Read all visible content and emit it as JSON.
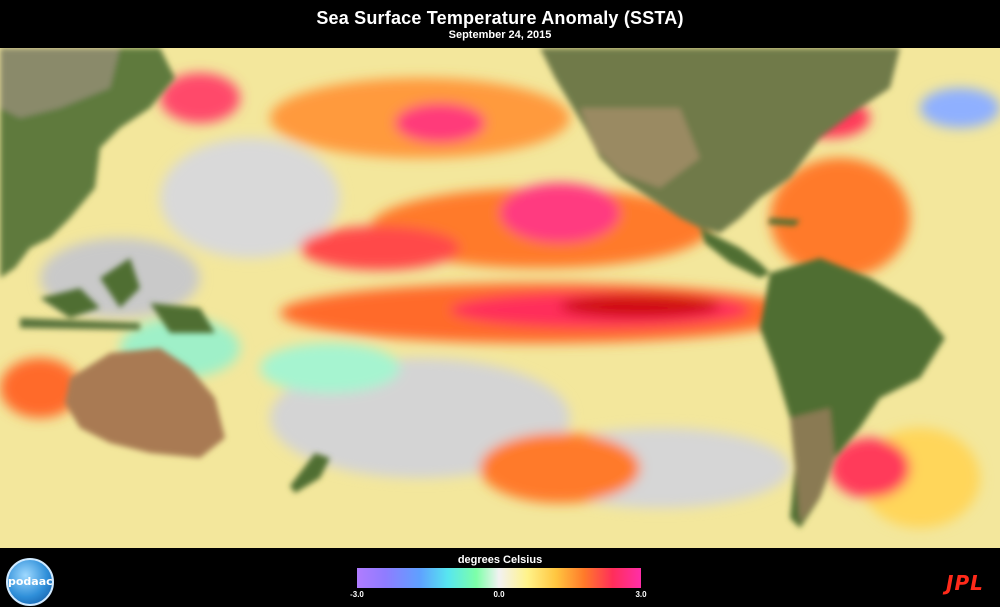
{
  "header": {
    "title": "Sea Surface Temperature Anomaly (SSTA)",
    "date": "September 24, 2015"
  },
  "colorbar": {
    "label": "degrees Celsius",
    "ticks": [
      "-3.0",
      "0.0",
      "3.0"
    ],
    "min": -3.0,
    "max": 3.0,
    "colors": [
      "#b07cff",
      "#5fa0ff",
      "#57e6f0",
      "#f2f2f2",
      "#fff38a",
      "#ffc640",
      "#ff7a2a",
      "#ff2e5a",
      "#ff2ea8"
    ]
  },
  "logos": {
    "left": "podaac",
    "right": "JPL"
  },
  "map": {
    "region": "Pacific Ocean",
    "ocean_color": "#f1e59a",
    "land_color": "#5e7a3e",
    "desert_color": "#a97a52"
  }
}
